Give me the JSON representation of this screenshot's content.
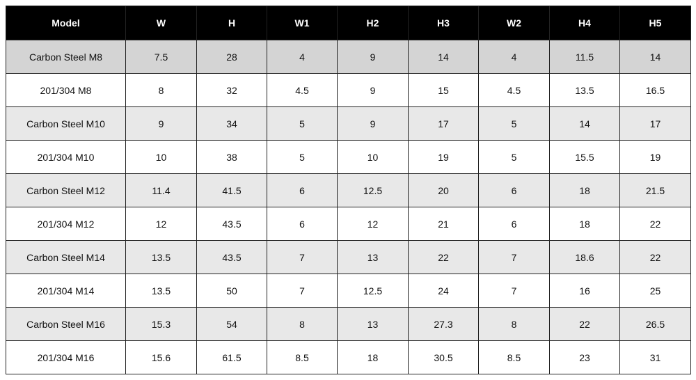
{
  "table": {
    "columns": [
      "Model",
      "W",
      "H",
      "W1",
      "H2",
      "H3",
      "W2",
      "H4",
      "H5"
    ],
    "rows": [
      [
        "Carbon Steel M8",
        "7.5",
        "28",
        "4",
        "9",
        "14",
        "4",
        "11.5",
        "14"
      ],
      [
        "201/304 M8",
        "8",
        "32",
        "4.5",
        "9",
        "15",
        "4.5",
        "13.5",
        "16.5"
      ],
      [
        "Carbon Steel M10",
        "9",
        "34",
        "5",
        "9",
        "17",
        "5",
        "14",
        "17"
      ],
      [
        "201/304 M10",
        "10",
        "38",
        "5",
        "10",
        "19",
        "5",
        "15.5",
        "19"
      ],
      [
        "Carbon Steel M12",
        "11.4",
        "41.5",
        "6",
        "12.5",
        "20",
        "6",
        "18",
        "21.5"
      ],
      [
        "201/304 M12",
        "12",
        "43.5",
        "6",
        "12",
        "21",
        "6",
        "18",
        "22"
      ],
      [
        "Carbon Steel M14",
        "13.5",
        "43.5",
        "7",
        "13",
        "22",
        "7",
        "18.6",
        "22"
      ],
      [
        "201/304 M14",
        "13.5",
        "50",
        "7",
        "12.5",
        "24",
        "7",
        "16",
        "25"
      ],
      [
        "Carbon Steel M16",
        "15.3",
        "54",
        "8",
        "13",
        "27.3",
        "8",
        "22",
        "26.5"
      ],
      [
        "201/304 M16",
        "15.6",
        "61.5",
        "8.5",
        "18",
        "30.5",
        "8.5",
        "23",
        "31"
      ]
    ]
  },
  "colors": {
    "header_bg": "#000000",
    "first_row_bg": "#d4d4d4",
    "shaded_row_bg": "#e8e8e8",
    "plain_row_bg": "#ffffff"
  }
}
